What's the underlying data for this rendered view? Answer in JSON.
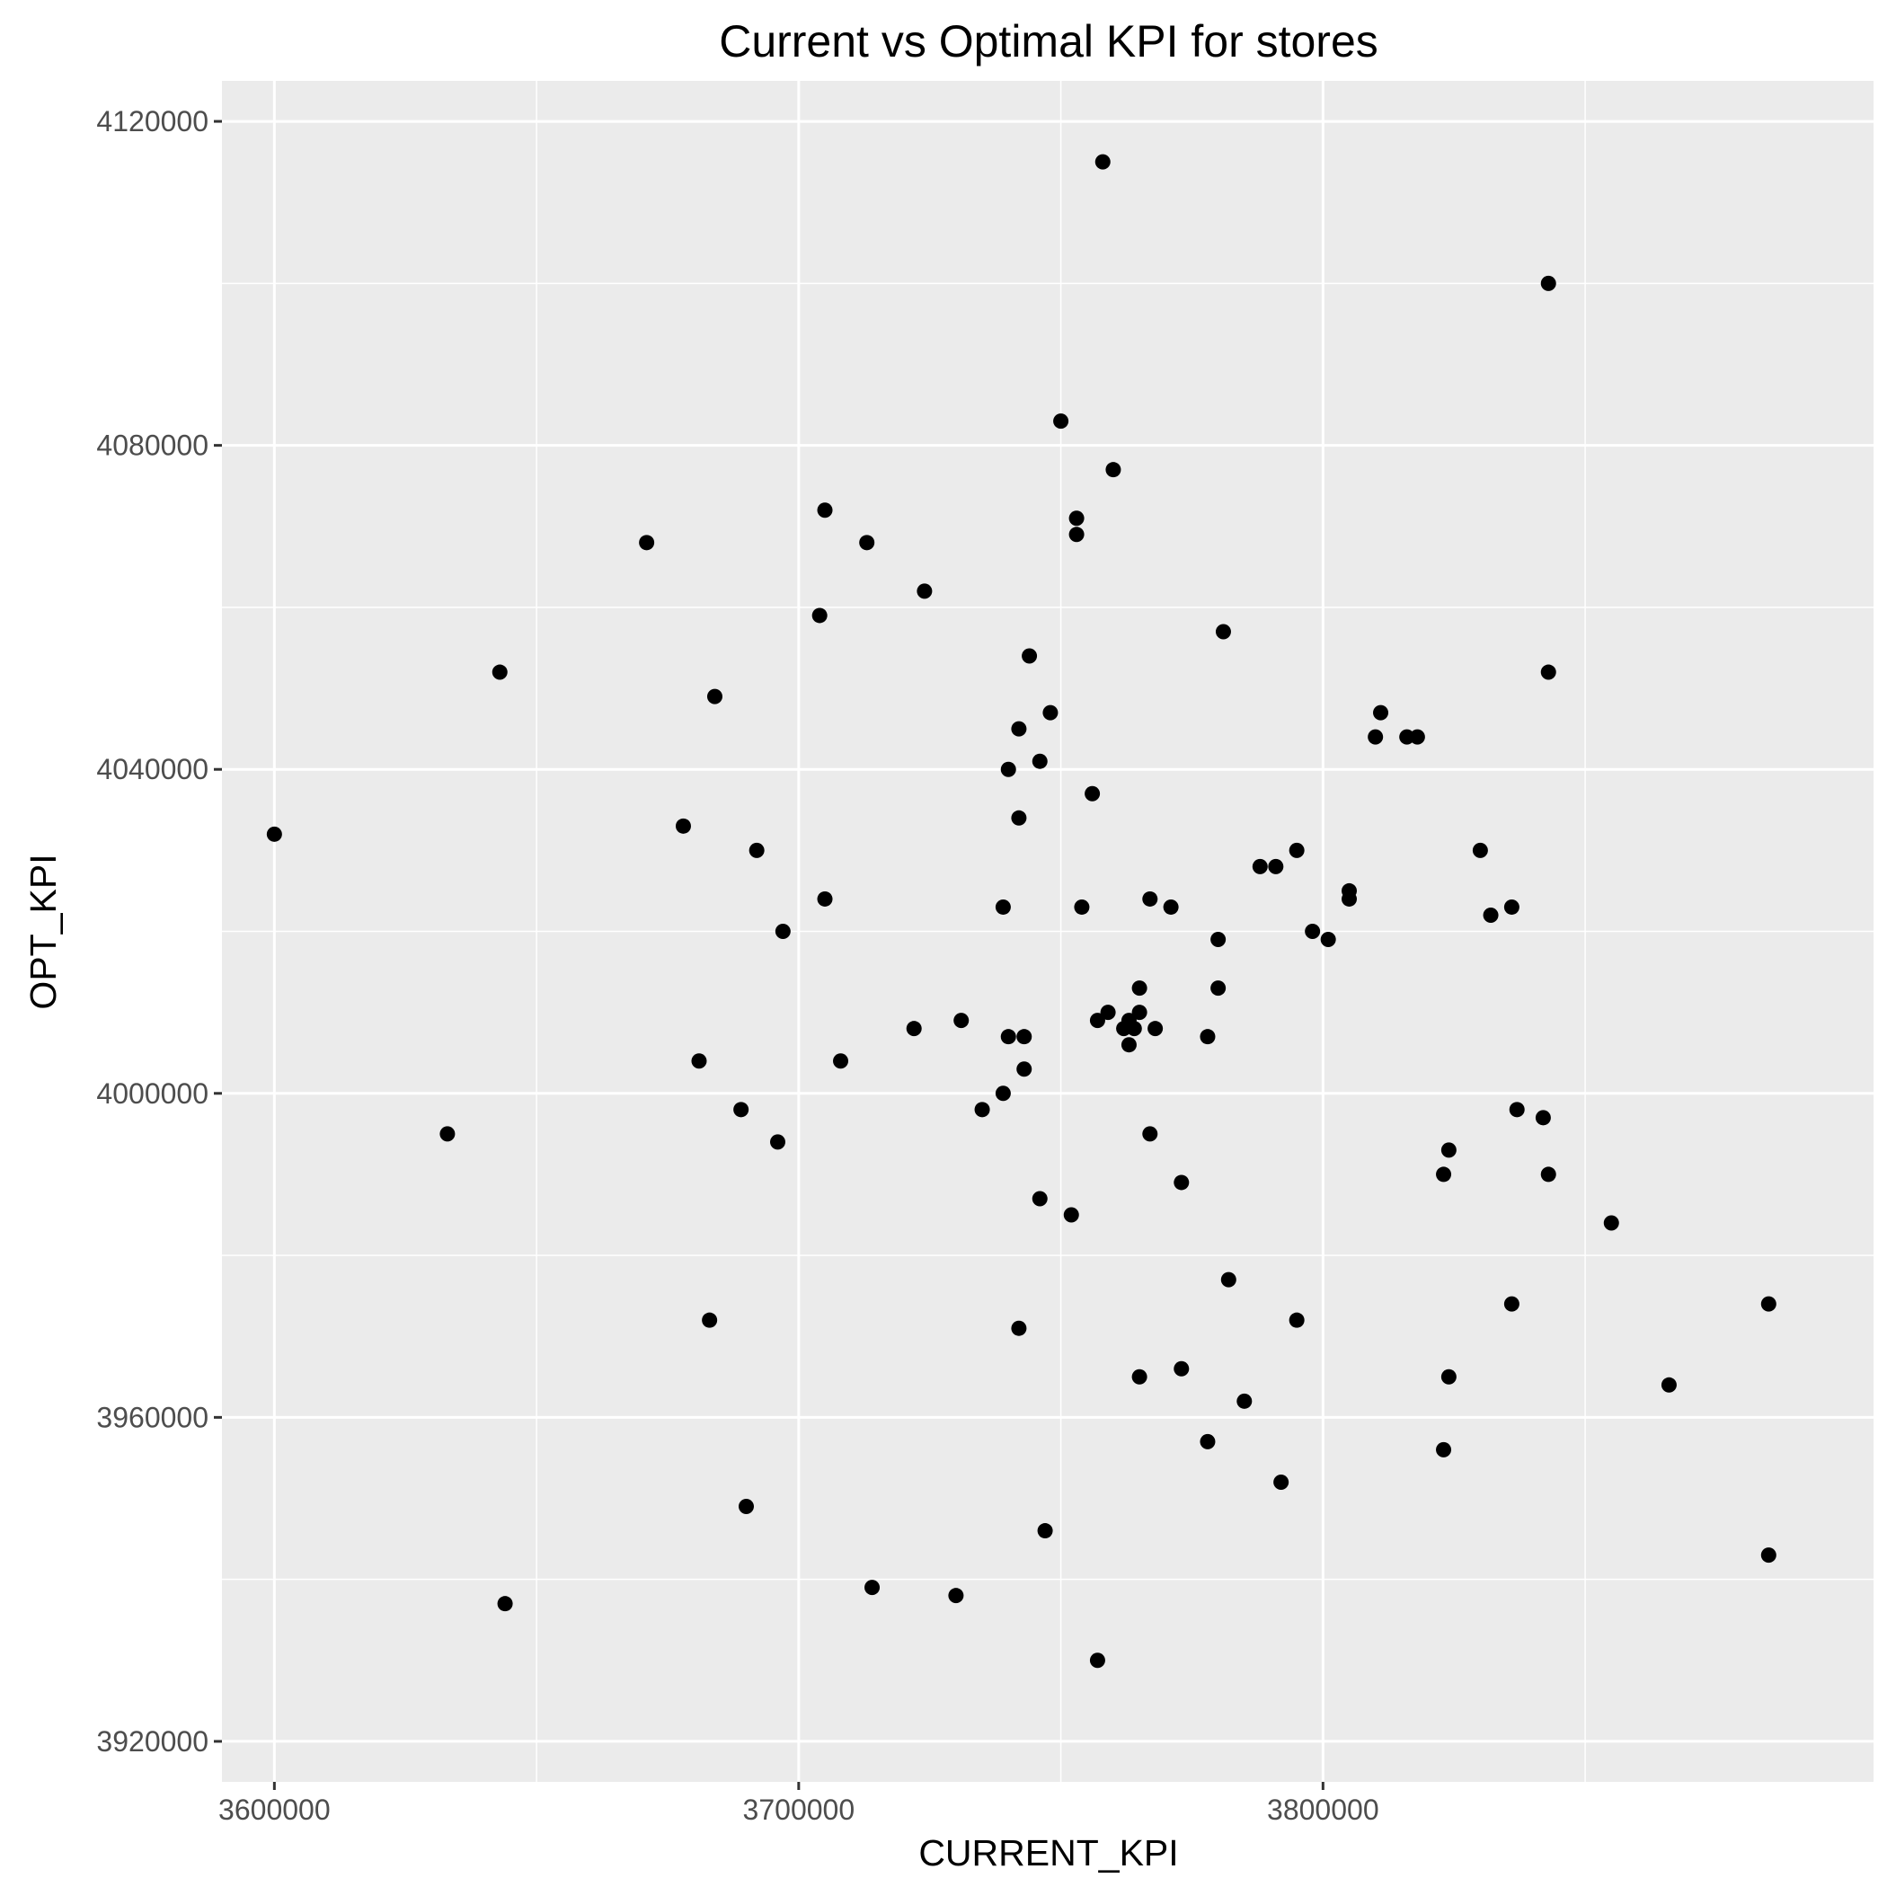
{
  "chart_data": {
    "type": "scatter",
    "title": "Current vs Optimal KPI for stores",
    "xlabel": "CURRENT_KPI",
    "ylabel": "OPT_KPI",
    "xlim": [
      3590000,
      3905000
    ],
    "ylim": [
      3915000,
      4125000
    ],
    "x_ticks": [
      3600000,
      3700000,
      3800000
    ],
    "y_ticks": [
      3920000,
      3960000,
      4000000,
      4040000,
      4080000,
      4120000
    ],
    "x_tick_labels": [
      "3600000",
      "3700000",
      "3800000"
    ],
    "y_tick_labels": [
      "3920000",
      "3960000",
      "4000000",
      "4040000",
      "4080000",
      "4120000"
    ],
    "grid": true,
    "legend": "none",
    "colors": {
      "panel": "#ebebeb",
      "grid": "#ffffff",
      "point": "#000000"
    },
    "points": [
      [
        3758000,
        4115000
      ],
      [
        3843000,
        4100000
      ],
      [
        3750000,
        4083000
      ],
      [
        3760000,
        4077000
      ],
      [
        3705000,
        4072000
      ],
      [
        3753000,
        4071000
      ],
      [
        3753000,
        4069000
      ],
      [
        3671000,
        4068000
      ],
      [
        3713000,
        4068000
      ],
      [
        3724000,
        4062000
      ],
      [
        3704000,
        4059000
      ],
      [
        3781000,
        4057000
      ],
      [
        3744000,
        4054000
      ],
      [
        3643000,
        4052000
      ],
      [
        3843000,
        4052000
      ],
      [
        3684000,
        4049000
      ],
      [
        3748000,
        4047000
      ],
      [
        3811000,
        4047000
      ],
      [
        3742000,
        4045000
      ],
      [
        3810000,
        4044000
      ],
      [
        3816000,
        4044000
      ],
      [
        3818000,
        4044000
      ],
      [
        3746000,
        4041000
      ],
      [
        3740000,
        4040000
      ],
      [
        3756000,
        4037000
      ],
      [
        3742000,
        4034000
      ],
      [
        3678000,
        4033000
      ],
      [
        3600000,
        4032000
      ],
      [
        3692000,
        4030000
      ],
      [
        3795000,
        4030000
      ],
      [
        3830000,
        4030000
      ],
      [
        3788000,
        4028000
      ],
      [
        3791000,
        4028000
      ],
      [
        3805000,
        4025000
      ],
      [
        3705000,
        4024000
      ],
      [
        3767000,
        4024000
      ],
      [
        3805000,
        4024000
      ],
      [
        3739000,
        4023000
      ],
      [
        3754000,
        4023000
      ],
      [
        3771000,
        4023000
      ],
      [
        3836000,
        4023000
      ],
      [
        3832000,
        4022000
      ],
      [
        3697000,
        4020000
      ],
      [
        3798000,
        4020000
      ],
      [
        3780000,
        4019000
      ],
      [
        3801000,
        4019000
      ],
      [
        3765000,
        4013000
      ],
      [
        3780000,
        4013000
      ],
      [
        3759000,
        4010000
      ],
      [
        3765000,
        4010000
      ],
      [
        3731000,
        4009000
      ],
      [
        3757000,
        4009000
      ],
      [
        3763000,
        4009000
      ],
      [
        3722000,
        4008000
      ],
      [
        3762000,
        4008000
      ],
      [
        3764000,
        4008000
      ],
      [
        3768000,
        4008000
      ],
      [
        3740000,
        4007000
      ],
      [
        3743000,
        4007000
      ],
      [
        3778000,
        4007000
      ],
      [
        3763000,
        4006000
      ],
      [
        3681000,
        4004000
      ],
      [
        3708000,
        4004000
      ],
      [
        3743000,
        4003000
      ],
      [
        3739000,
        4000000
      ],
      [
        3689000,
        3998000
      ],
      [
        3735000,
        3998000
      ],
      [
        3837000,
        3998000
      ],
      [
        3842000,
        3997000
      ],
      [
        3633000,
        3995000
      ],
      [
        3767000,
        3995000
      ],
      [
        3696000,
        3994000
      ],
      [
        3824000,
        3993000
      ],
      [
        3823000,
        3990000
      ],
      [
        3843000,
        3990000
      ],
      [
        3773000,
        3989000
      ],
      [
        3746000,
        3987000
      ],
      [
        3752000,
        3985000
      ],
      [
        3855000,
        3984000
      ],
      [
        3782000,
        3977000
      ],
      [
        3836000,
        3974000
      ],
      [
        3885000,
        3974000
      ],
      [
        3683000,
        3972000
      ],
      [
        3795000,
        3972000
      ],
      [
        3742000,
        3971000
      ],
      [
        3773000,
        3966000
      ],
      [
        3765000,
        3965000
      ],
      [
        3824000,
        3965000
      ],
      [
        3866000,
        3964000
      ],
      [
        3785000,
        3962000
      ],
      [
        3778000,
        3957000
      ],
      [
        3823000,
        3956000
      ],
      [
        3792000,
        3952000
      ],
      [
        3690000,
        3949000
      ],
      [
        3747000,
        3946000
      ],
      [
        3885000,
        3943000
      ],
      [
        3714000,
        3939000
      ],
      [
        3730000,
        3938000
      ],
      [
        3644000,
        3937000
      ],
      [
        3757000,
        3930000
      ]
    ]
  }
}
